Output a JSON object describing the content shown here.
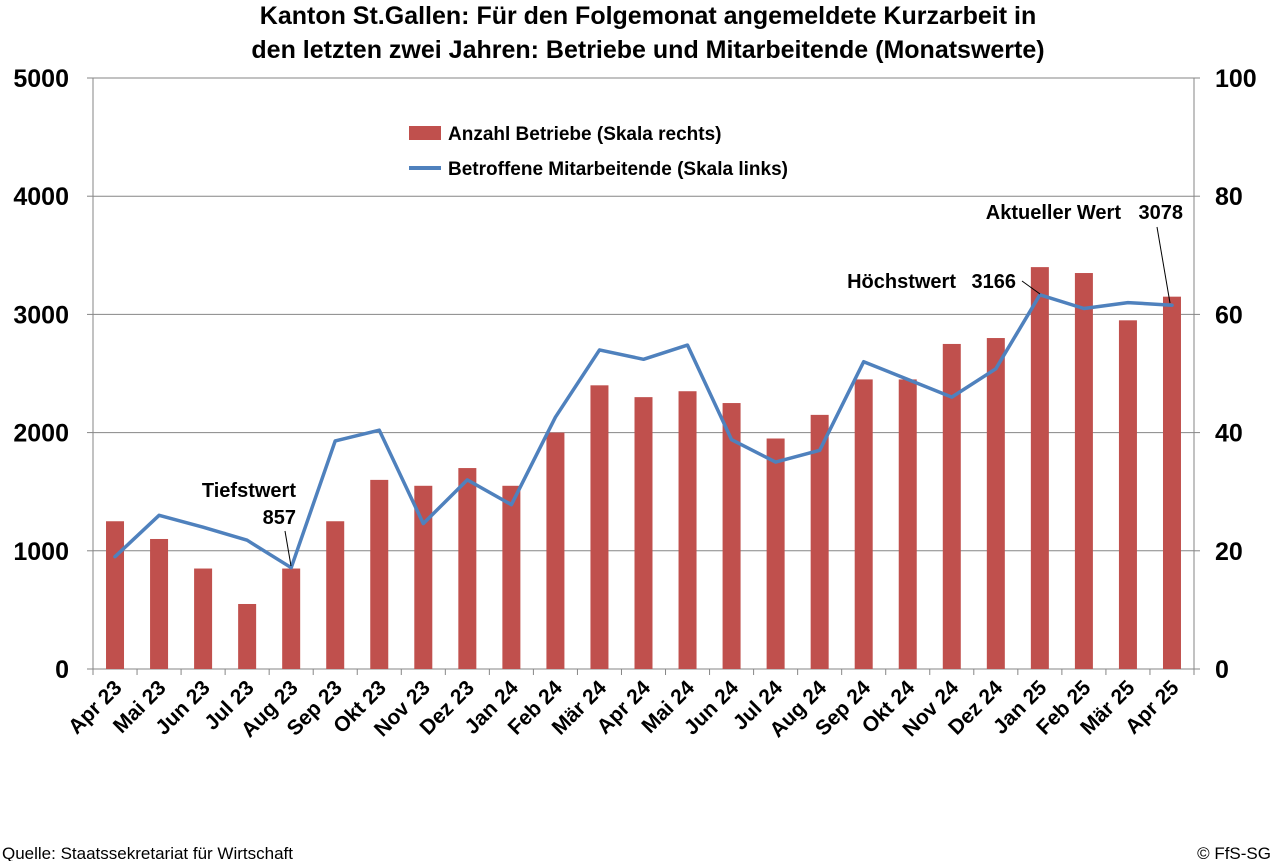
{
  "chart_data": {
    "type": "bar+line",
    "title_line1": "Kanton St.Gallen: Für den Folgemonat angemeldete Kurzarbeit in",
    "title_line2": "den letzten zwei Jahren: Betriebe und Mitarbeitende (Monatswerte)",
    "categories": [
      "Apr 23",
      "Mai 23",
      "Jun 23",
      "Jul 23",
      "Aug 23",
      "Sep 23",
      "Okt 23",
      "Nov 23",
      "Dez 23",
      "Jan 24",
      "Feb 24",
      "Mär 24",
      "Apr 24",
      "Mai 24",
      "Jun 24",
      "Jul 24",
      "Aug 24",
      "Sep 24",
      "Okt 24",
      "Nov 24",
      "Dez 24",
      "Jan 25",
      "Feb 25",
      "Mär 25",
      "Apr 25"
    ],
    "series": [
      {
        "name": "Anzahl Betriebe (Skala rechts)",
        "type": "bar",
        "axis": "right",
        "color": "#c0504d",
        "values": [
          25,
          22,
          17,
          11,
          17,
          25,
          32,
          31,
          34,
          31,
          40,
          48,
          46,
          47,
          45,
          39,
          43,
          49,
          49,
          55,
          56,
          68,
          67,
          59,
          63
        ]
      },
      {
        "name": "Betroffene Mitarbeitende (Skala links)",
        "type": "line",
        "axis": "left",
        "color": "#4f81bd",
        "values": [
          950,
          1300,
          1200,
          1090,
          857,
          1930,
          2020,
          1230,
          1600,
          1390,
          2130,
          2700,
          2620,
          2740,
          1940,
          1750,
          1850,
          2600,
          2450,
          2300,
          2540,
          3166,
          3050,
          3100,
          3078
        ]
      }
    ],
    "y_left": {
      "ticks": [
        "0",
        "1000",
        "2000",
        "3000",
        "4000",
        "5000"
      ],
      "lim": [
        0,
        5000
      ]
    },
    "y_right": {
      "ticks": [
        "0",
        "20",
        "40",
        "60",
        "80",
        "100"
      ],
      "lim": [
        0,
        100
      ]
    },
    "grid": true,
    "legend_position": "top-center",
    "annotations": {
      "min_label": "Tiefstwert",
      "min_value": "857",
      "max_label": "Höchstwert",
      "max_value": "3166",
      "current_label": "Aktueller Wert",
      "current_value": "3078"
    }
  },
  "footer": {
    "source": "Quelle: Staatssekretariat für Wirtschaft",
    "copyright": "© FfS-SG"
  }
}
